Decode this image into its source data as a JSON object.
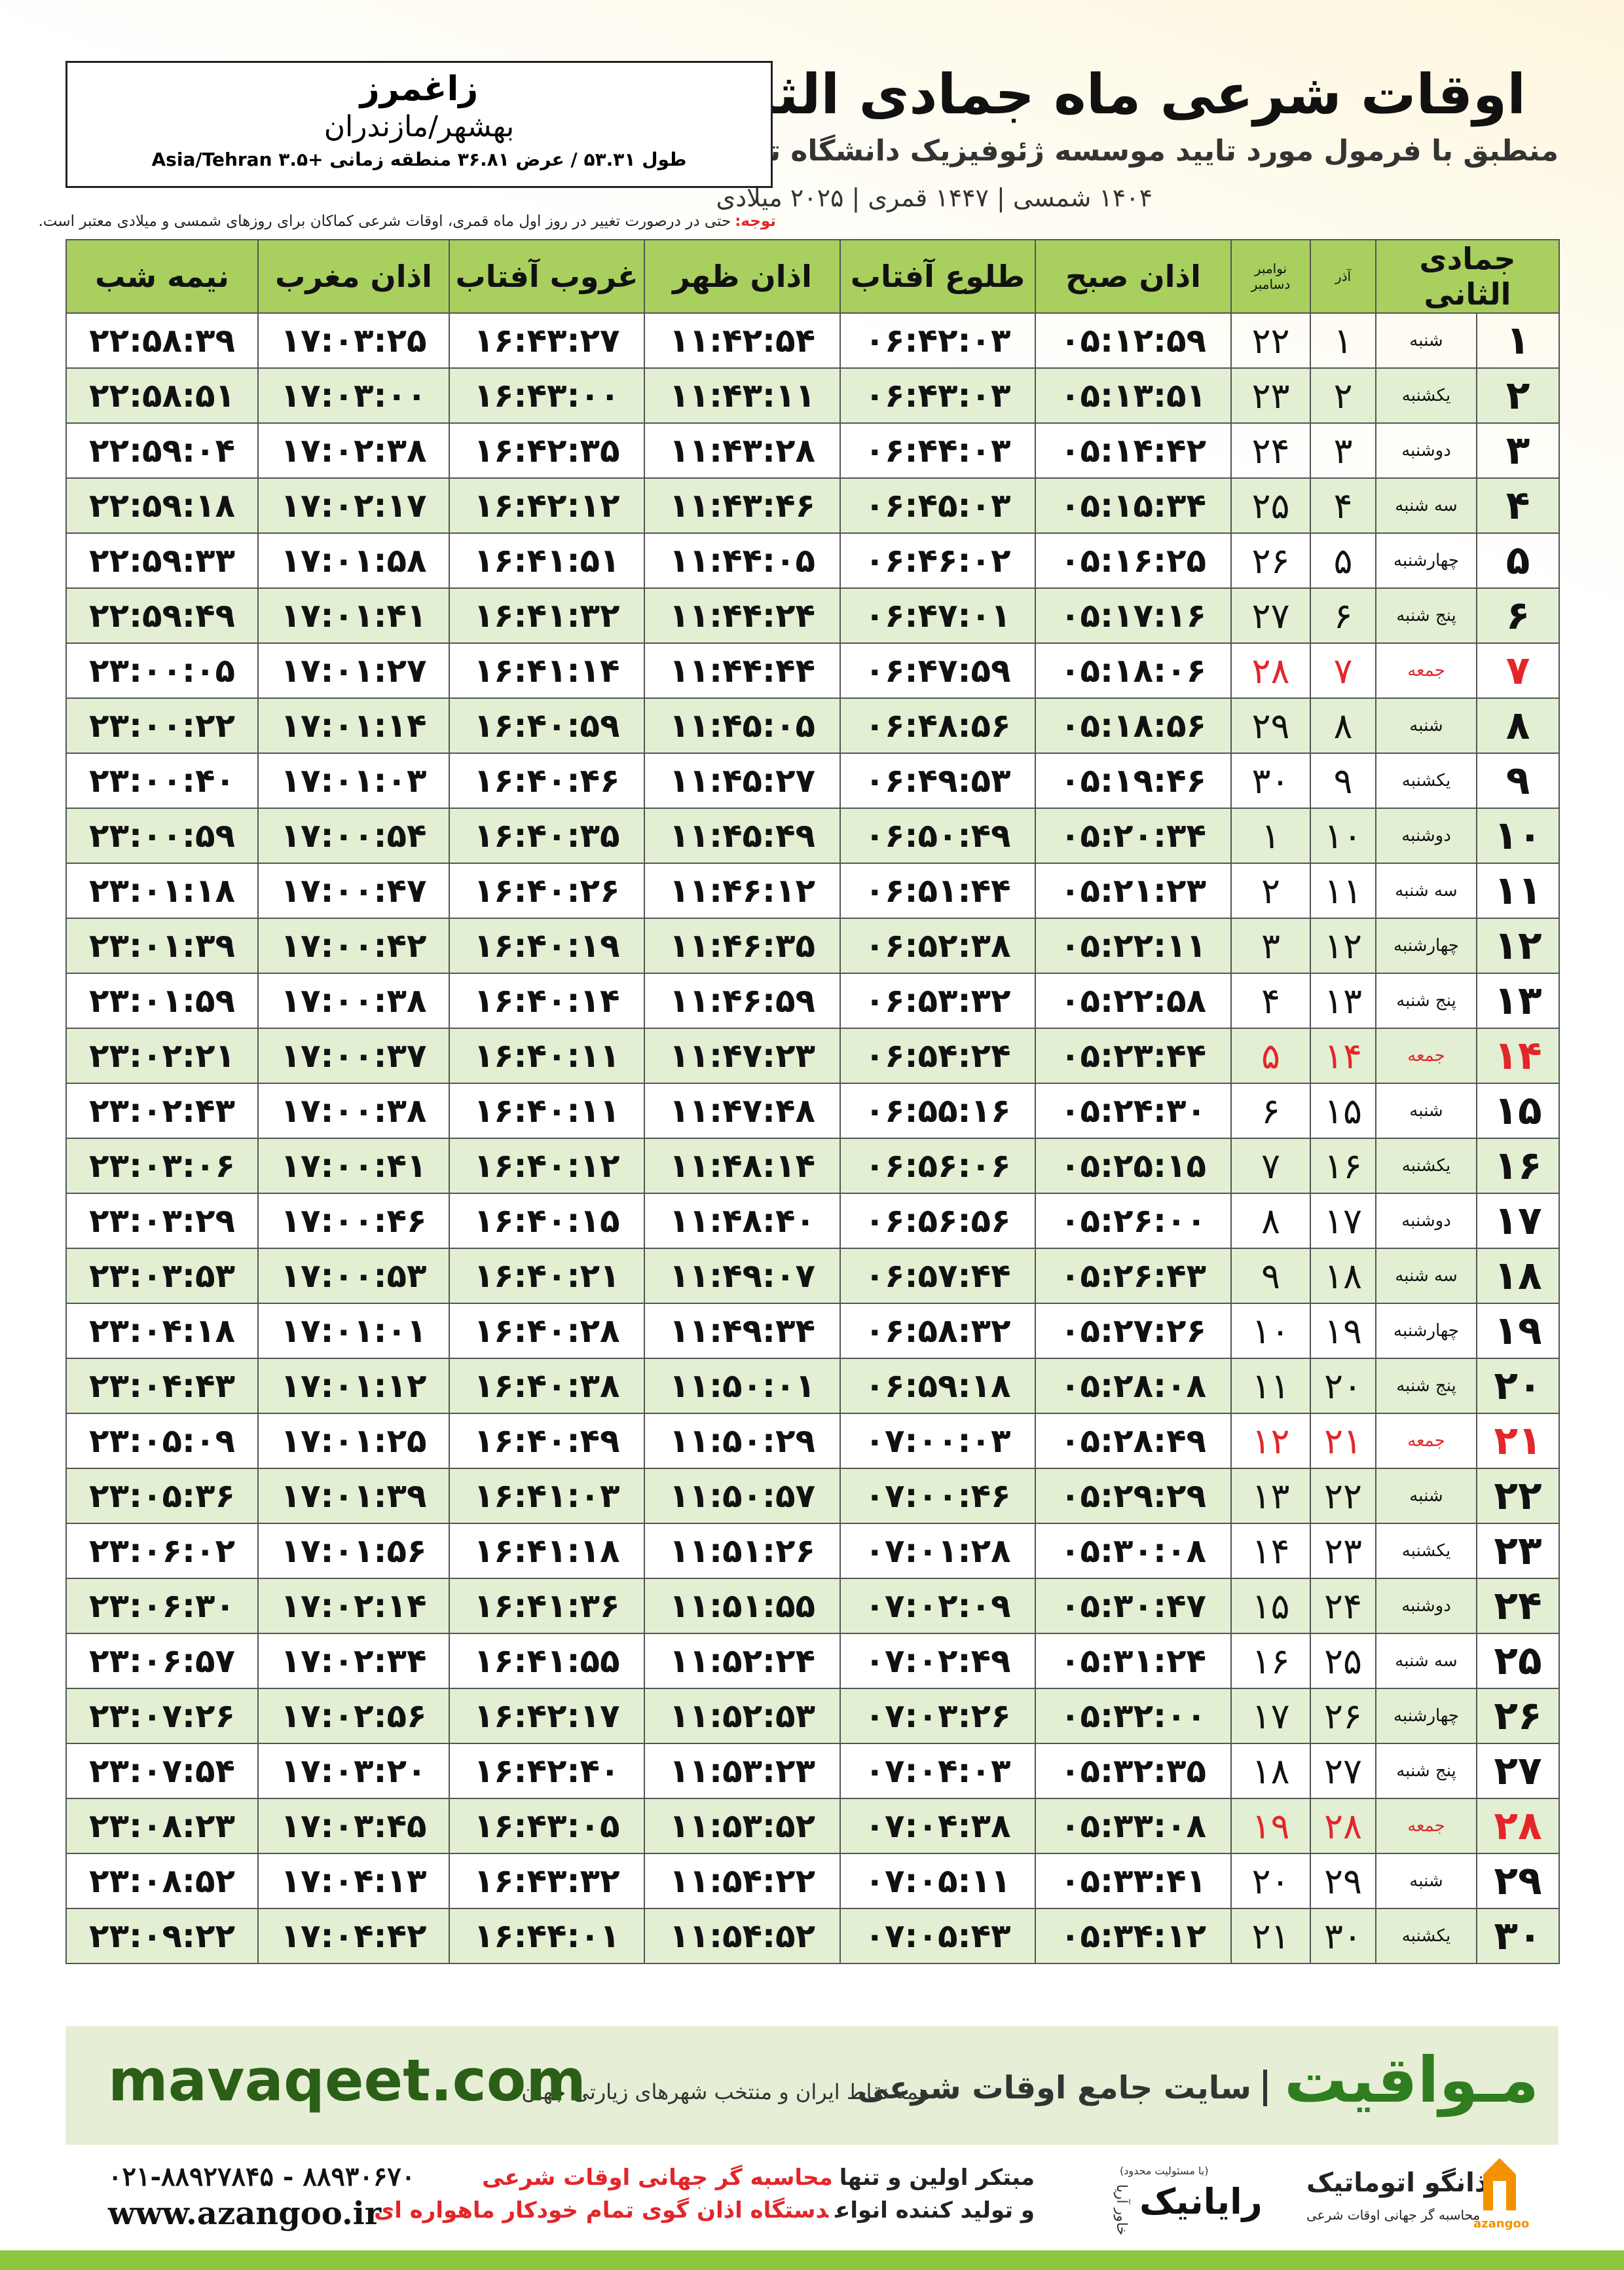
{
  "header": {
    "title": "اوقات شرعی ماه جمادی الثانی",
    "subtitle": "منطبق با فرمول مورد تایید موسسه ژئوفیزیک دانشگاه تهران",
    "years": "۱۴۰۴ شمسی | ۱۴۴۷ قمری | ۲۰۲۵ میلادی"
  },
  "location": {
    "city": "زاغمرز",
    "region": "بهشهر/مازندران",
    "coords": "طول ۵۳.۳۱ / عرض ۳۶.۸۱ منطقه زمانی +۳.۵ Asia/Tehran"
  },
  "note": {
    "label": "توجه:",
    "text": "حتی در درصورت تغییر در روز اول ماه قمری، اوقات شرعی کماکان برای روزهای شمسی و میلادی معتبر است."
  },
  "table": {
    "holiday_color": "#e3262a",
    "columns": [
      "جمادی الثانی",
      "",
      {
        "upper": "آذر"
      },
      {
        "upper": "نوامبر",
        "lower": "دسامبر"
      },
      "اذان صبح",
      "طلوع آفتاب",
      "اذان ظهر",
      "غروب آفتاب",
      "اذان مغرب",
      "نیمه شب"
    ],
    "rows": [
      {
        "cells": [
          "۱",
          "شنبه",
          "۱",
          "۲۲",
          "۰۵:۱۲:۵۹",
          "۰۶:۴۲:۰۳",
          "۱۱:۴۲:۵۴",
          "۱۶:۴۳:۲۷",
          "۱۷:۰۳:۲۵",
          "۲۲:۵۸:۳۹"
        ],
        "holiday": false
      },
      {
        "cells": [
          "۲",
          "یکشنبه",
          "۲",
          "۲۳",
          "۰۵:۱۳:۵۱",
          "۰۶:۴۳:۰۳",
          "۱۱:۴۳:۱۱",
          "۱۶:۴۳:۰۰",
          "۱۷:۰۳:۰۰",
          "۲۲:۵۸:۵۱"
        ],
        "holiday": false
      },
      {
        "cells": [
          "۳",
          "دوشنبه",
          "۳",
          "۲۴",
          "۰۵:۱۴:۴۲",
          "۰۶:۴۴:۰۳",
          "۱۱:۴۳:۲۸",
          "۱۶:۴۲:۳۵",
          "۱۷:۰۲:۳۸",
          "۲۲:۵۹:۰۴"
        ],
        "holiday": false
      },
      {
        "cells": [
          "۴",
          "سه شنبه",
          "۴",
          "۲۵",
          "۰۵:۱۵:۳۴",
          "۰۶:۴۵:۰۳",
          "۱۱:۴۳:۴۶",
          "۱۶:۴۲:۱۲",
          "۱۷:۰۲:۱۷",
          "۲۲:۵۹:۱۸"
        ],
        "holiday": false
      },
      {
        "cells": [
          "۵",
          "چهارشنبه",
          "۵",
          "۲۶",
          "۰۵:۱۶:۲۵",
          "۰۶:۴۶:۰۲",
          "۱۱:۴۴:۰۵",
          "۱۶:۴۱:۵۱",
          "۱۷:۰۱:۵۸",
          "۲۲:۵۹:۳۳"
        ],
        "holiday": false
      },
      {
        "cells": [
          "۶",
          "پنج شنبه",
          "۶",
          "۲۷",
          "۰۵:۱۷:۱۶",
          "۰۶:۴۷:۰۱",
          "۱۱:۴۴:۲۴",
          "۱۶:۴۱:۳۲",
          "۱۷:۰۱:۴۱",
          "۲۲:۵۹:۴۹"
        ],
        "holiday": false
      },
      {
        "cells": [
          "۷",
          "جمعه",
          "۷",
          "۲۸",
          "۰۵:۱۸:۰۶",
          "۰۶:۴۷:۵۹",
          "۱۱:۴۴:۴۴",
          "۱۶:۴۱:۱۴",
          "۱۷:۰۱:۲۷",
          "۲۳:۰۰:۰۵"
        ],
        "holiday": true
      },
      {
        "cells": [
          "۸",
          "شنبه",
          "۸",
          "۲۹",
          "۰۵:۱۸:۵۶",
          "۰۶:۴۸:۵۶",
          "۱۱:۴۵:۰۵",
          "۱۶:۴۰:۵۹",
          "۱۷:۰۱:۱۴",
          "۲۳:۰۰:۲۲"
        ],
        "holiday": false
      },
      {
        "cells": [
          "۹",
          "یکشنبه",
          "۹",
          "۳۰",
          "۰۵:۱۹:۴۶",
          "۰۶:۴۹:۵۳",
          "۱۱:۴۵:۲۷",
          "۱۶:۴۰:۴۶",
          "۱۷:۰۱:۰۳",
          "۲۳:۰۰:۴۰"
        ],
        "holiday": false
      },
      {
        "cells": [
          "۱۰",
          "دوشنبه",
          "۱۰",
          "۱",
          "۰۵:۲۰:۳۴",
          "۰۶:۵۰:۴۹",
          "۱۱:۴۵:۴۹",
          "۱۶:۴۰:۳۵",
          "۱۷:۰۰:۵۴",
          "۲۳:۰۰:۵۹"
        ],
        "holiday": false
      },
      {
        "cells": [
          "۱۱",
          "سه شنبه",
          "۱۱",
          "۲",
          "۰۵:۲۱:۲۳",
          "۰۶:۵۱:۴۴",
          "۱۱:۴۶:۱۲",
          "۱۶:۴۰:۲۶",
          "۱۷:۰۰:۴۷",
          "۲۳:۰۱:۱۸"
        ],
        "holiday": false
      },
      {
        "cells": [
          "۱۲",
          "چهارشنبه",
          "۱۲",
          "۳",
          "۰۵:۲۲:۱۱",
          "۰۶:۵۲:۳۸",
          "۱۱:۴۶:۳۵",
          "۱۶:۴۰:۱۹",
          "۱۷:۰۰:۴۲",
          "۲۳:۰۱:۳۹"
        ],
        "holiday": false
      },
      {
        "cells": [
          "۱۳",
          "پنج شنبه",
          "۱۳",
          "۴",
          "۰۵:۲۲:۵۸",
          "۰۶:۵۳:۳۲",
          "۱۱:۴۶:۵۹",
          "۱۶:۴۰:۱۴",
          "۱۷:۰۰:۳۸",
          "۲۳:۰۱:۵۹"
        ],
        "holiday": false
      },
      {
        "cells": [
          "۱۴",
          "جمعه",
          "۱۴",
          "۵",
          "۰۵:۲۳:۴۴",
          "۰۶:۵۴:۲۴",
          "۱۱:۴۷:۲۳",
          "۱۶:۴۰:۱۱",
          "۱۷:۰۰:۳۷",
          "۲۳:۰۲:۲۱"
        ],
        "holiday": true
      },
      {
        "cells": [
          "۱۵",
          "شنبه",
          "۱۵",
          "۶",
          "۰۵:۲۴:۳۰",
          "۰۶:۵۵:۱۶",
          "۱۱:۴۷:۴۸",
          "۱۶:۴۰:۱۱",
          "۱۷:۰۰:۳۸",
          "۲۳:۰۲:۴۳"
        ],
        "holiday": false
      },
      {
        "cells": [
          "۱۶",
          "یکشنبه",
          "۱۶",
          "۷",
          "۰۵:۲۵:۱۵",
          "۰۶:۵۶:۰۶",
          "۱۱:۴۸:۱۴",
          "۱۶:۴۰:۱۲",
          "۱۷:۰۰:۴۱",
          "۲۳:۰۳:۰۶"
        ],
        "holiday": false
      },
      {
        "cells": [
          "۱۷",
          "دوشنبه",
          "۱۷",
          "۸",
          "۰۵:۲۶:۰۰",
          "۰۶:۵۶:۵۶",
          "۱۱:۴۸:۴۰",
          "۱۶:۴۰:۱۵",
          "۱۷:۰۰:۴۶",
          "۲۳:۰۳:۲۹"
        ],
        "holiday": false
      },
      {
        "cells": [
          "۱۸",
          "سه شنبه",
          "۱۸",
          "۹",
          "۰۵:۲۶:۴۳",
          "۰۶:۵۷:۴۴",
          "۱۱:۴۹:۰۷",
          "۱۶:۴۰:۲۱",
          "۱۷:۰۰:۵۳",
          "۲۳:۰۳:۵۳"
        ],
        "holiday": false
      },
      {
        "cells": [
          "۱۹",
          "چهارشنبه",
          "۱۹",
          "۱۰",
          "۰۵:۲۷:۲۶",
          "۰۶:۵۸:۳۲",
          "۱۱:۴۹:۳۴",
          "۱۶:۴۰:۲۸",
          "۱۷:۰۱:۰۱",
          "۲۳:۰۴:۱۸"
        ],
        "holiday": false
      },
      {
        "cells": [
          "۲۰",
          "پنج شنبه",
          "۲۰",
          "۱۱",
          "۰۵:۲۸:۰۸",
          "۰۶:۵۹:۱۸",
          "۱۱:۵۰:۰۱",
          "۱۶:۴۰:۳۸",
          "۱۷:۰۱:۱۲",
          "۲۳:۰۴:۴۳"
        ],
        "holiday": false
      },
      {
        "cells": [
          "۲۱",
          "جمعه",
          "۲۱",
          "۱۲",
          "۰۵:۲۸:۴۹",
          "۰۷:۰۰:۰۳",
          "۱۱:۵۰:۲۹",
          "۱۶:۴۰:۴۹",
          "۱۷:۰۱:۲۵",
          "۲۳:۰۵:۰۹"
        ],
        "holiday": true
      },
      {
        "cells": [
          "۲۲",
          "شنبه",
          "۲۲",
          "۱۳",
          "۰۵:۲۹:۲۹",
          "۰۷:۰۰:۴۶",
          "۱۱:۵۰:۵۷",
          "۱۶:۴۱:۰۳",
          "۱۷:۰۱:۳۹",
          "۲۳:۰۵:۳۶"
        ],
        "holiday": false
      },
      {
        "cells": [
          "۲۳",
          "یکشنبه",
          "۲۳",
          "۱۴",
          "۰۵:۳۰:۰۸",
          "۰۷:۰۱:۲۸",
          "۱۱:۵۱:۲۶",
          "۱۶:۴۱:۱۸",
          "۱۷:۰۱:۵۶",
          "۲۳:۰۶:۰۲"
        ],
        "holiday": false
      },
      {
        "cells": [
          "۲۴",
          "دوشنبه",
          "۲۴",
          "۱۵",
          "۰۵:۳۰:۴۷",
          "۰۷:۰۲:۰۹",
          "۱۱:۵۱:۵۵",
          "۱۶:۴۱:۳۶",
          "۱۷:۰۲:۱۴",
          "۲۳:۰۶:۳۰"
        ],
        "holiday": false
      },
      {
        "cells": [
          "۲۵",
          "سه شنبه",
          "۲۵",
          "۱۶",
          "۰۵:۳۱:۲۴",
          "۰۷:۰۲:۴۹",
          "۱۱:۵۲:۲۴",
          "۱۶:۴۱:۵۵",
          "۱۷:۰۲:۳۴",
          "۲۳:۰۶:۵۷"
        ],
        "holiday": false
      },
      {
        "cells": [
          "۲۶",
          "چهارشنبه",
          "۲۶",
          "۱۷",
          "۰۵:۳۲:۰۰",
          "۰۷:۰۳:۲۶",
          "۱۱:۵۲:۵۳",
          "۱۶:۴۲:۱۷",
          "۱۷:۰۲:۵۶",
          "۲۳:۰۷:۲۶"
        ],
        "holiday": false
      },
      {
        "cells": [
          "۲۷",
          "پنج شنبه",
          "۲۷",
          "۱۸",
          "۰۵:۳۲:۳۵",
          "۰۷:۰۴:۰۳",
          "۱۱:۵۳:۲۳",
          "۱۶:۴۲:۴۰",
          "۱۷:۰۳:۲۰",
          "۲۳:۰۷:۵۴"
        ],
        "holiday": false
      },
      {
        "cells": [
          "۲۸",
          "جمعه",
          "۲۸",
          "۱۹",
          "۰۵:۳۳:۰۸",
          "۰۷:۰۴:۳۸",
          "۱۱:۵۳:۵۲",
          "۱۶:۴۳:۰۵",
          "۱۷:۰۳:۴۵",
          "۲۳:۰۸:۲۳"
        ],
        "holiday": true
      },
      {
        "cells": [
          "۲۹",
          "شنبه",
          "۲۹",
          "۲۰",
          "۰۵:۳۳:۴۱",
          "۰۷:۰۵:۱۱",
          "۱۱:۵۴:۲۲",
          "۱۶:۴۳:۳۲",
          "۱۷:۰۴:۱۳",
          "۲۳:۰۸:۵۲"
        ],
        "holiday": false
      },
      {
        "cells": [
          "۳۰",
          "یکشنبه",
          "۳۰",
          "۲۱",
          "۰۵:۳۴:۱۲",
          "۰۷:۰۵:۴۳",
          "۱۱:۵۴:۵۲",
          "۱۶:۴۴:۰۱",
          "۱۷:۰۴:۴۲",
          "۲۳:۰۹:۲۲"
        ],
        "holiday": false
      }
    ]
  },
  "banner": {
    "brand": "مـواقیت",
    "slogan": "سایت جامع اوقات شرعی",
    "scope": "همه نقاط ایران و منتخب شهرهای زیارتی جهان",
    "url": "mavaqeet.com"
  },
  "footer": {
    "phones": "۰۲۱-۸۸۹۲۷۸۴۵ - ۸۸۹۳۰۶۷۰",
    "site": "www.azangoo.ir",
    "line1": "مبتکر اولین و تنها",
    "line1_red": "محاسبه گر جهانی اوقات شرعی",
    "line2": "و تولید کننده انواع",
    "line2_red": "دستگاه اذان گوی تمام خودکار ماهواره ای",
    "partner_note": "(با مسئولیت محدود)",
    "partner": "رایانیک",
    "partner_sub": "خاور آریا",
    "logo": "اذانگو اتوماتیک",
    "logo_sub": "محاسبه گر جهانی اوقات شرعی",
    "logo_latin": "azangoo"
  }
}
